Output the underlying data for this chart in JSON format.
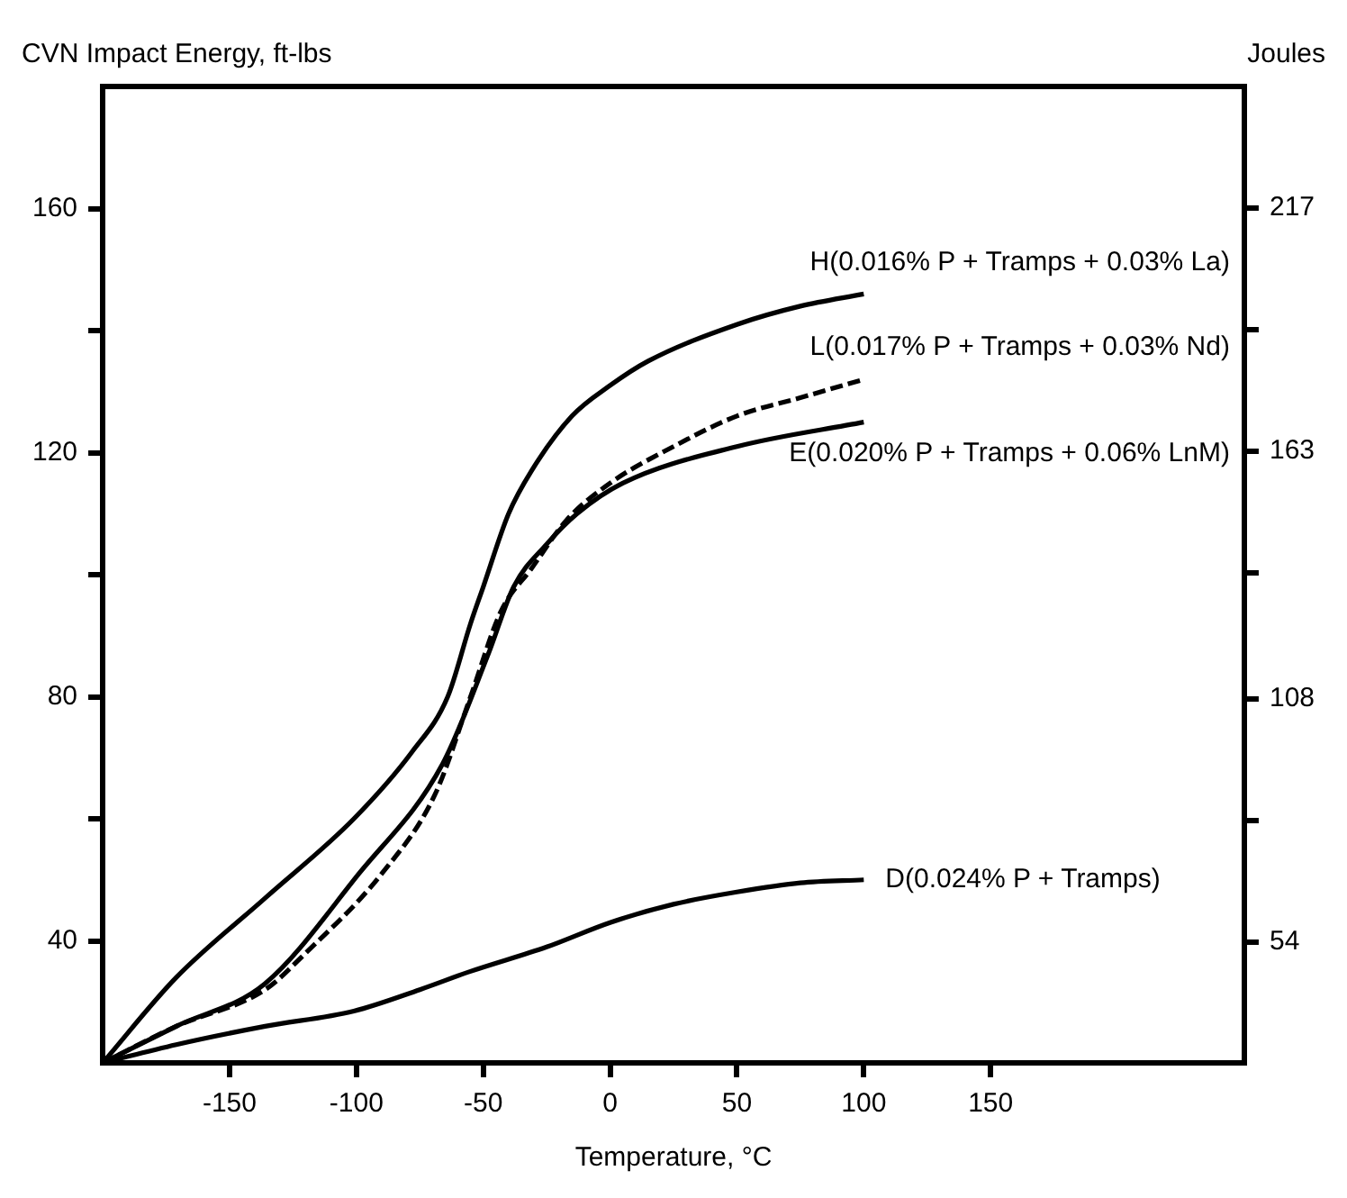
{
  "chart_data": {
    "type": "line",
    "xlabel": "Temperature, °C",
    "ylabel": "CVN Impact Energy, ft-lbs",
    "y2label": "Joules",
    "xlim": [
      -200,
      250
    ],
    "xticks": [
      -150,
      -100,
      -50,
      0,
      50,
      100,
      150
    ],
    "ylim": [
      20,
      180
    ],
    "yticks": [
      40,
      {
        "value": 60,
        "label": null
      },
      80,
      {
        "value": 100,
        "label": null
      },
      120,
      {
        "value": 140,
        "label": null
      },
      160
    ],
    "y2lim": [
      27.1,
      244
    ],
    "y2ticks": [
      54,
      {
        "value": 81,
        "label": null
      },
      108,
      {
        "value": 136,
        "label": null
      },
      163,
      {
        "value": 190,
        "label": null
      },
      217
    ],
    "legend": false,
    "marker": "none",
    "series": [
      {
        "name": "H(0.016% P + Tramps + 0.03% La)",
        "color": "#000000",
        "line_style": "solid",
        "x": [
          -200,
          -171,
          -136,
          -101,
          -78,
          -64,
          -55,
          -50,
          -40,
          -31,
          -15,
          0,
          15,
          50,
          75,
          100
        ],
        "values": [
          20,
          34,
          47,
          60,
          71,
          80,
          92,
          98,
          110,
          117,
          126,
          131,
          135,
          141,
          144,
          146
        ]
      },
      {
        "name": "L(0.017% P + Tramps + 0.03% Nd)",
        "color": "#000000",
        "line_style": "dashed",
        "x": [
          -200,
          -171,
          -136,
          -120,
          -90,
          -69,
          -55,
          -43,
          -31,
          -17,
          0,
          25,
          50,
          75,
          100
        ],
        "values": [
          20,
          26,
          32,
          38,
          51,
          64,
          80,
          94,
          101,
          109,
          115,
          121,
          126,
          129,
          132
        ]
      },
      {
        "name": "E(0.020% P + Tramps + 0.06% LnM)",
        "color": "#000000",
        "line_style": "solid",
        "x": [
          -200,
          -171,
          -136,
          -99,
          -66,
          -48,
          -38,
          -25,
          -13,
          5,
          50,
          100
        ],
        "values": [
          20,
          26,
          33,
          51,
          69,
          87,
          98,
          105,
          110,
          115,
          121,
          125
        ]
      },
      {
        "name": "D(0.024% P + Tramps)",
        "color": "#000000",
        "line_style": "solid",
        "x": [
          -200,
          -171,
          -136,
          -101,
          -75,
          -55,
          -25,
          0,
          25,
          50,
          75,
          100
        ],
        "values": [
          20,
          23,
          26,
          28.5,
          32,
          35,
          39,
          43,
          46,
          48,
          49.5,
          50
        ]
      }
    ]
  }
}
